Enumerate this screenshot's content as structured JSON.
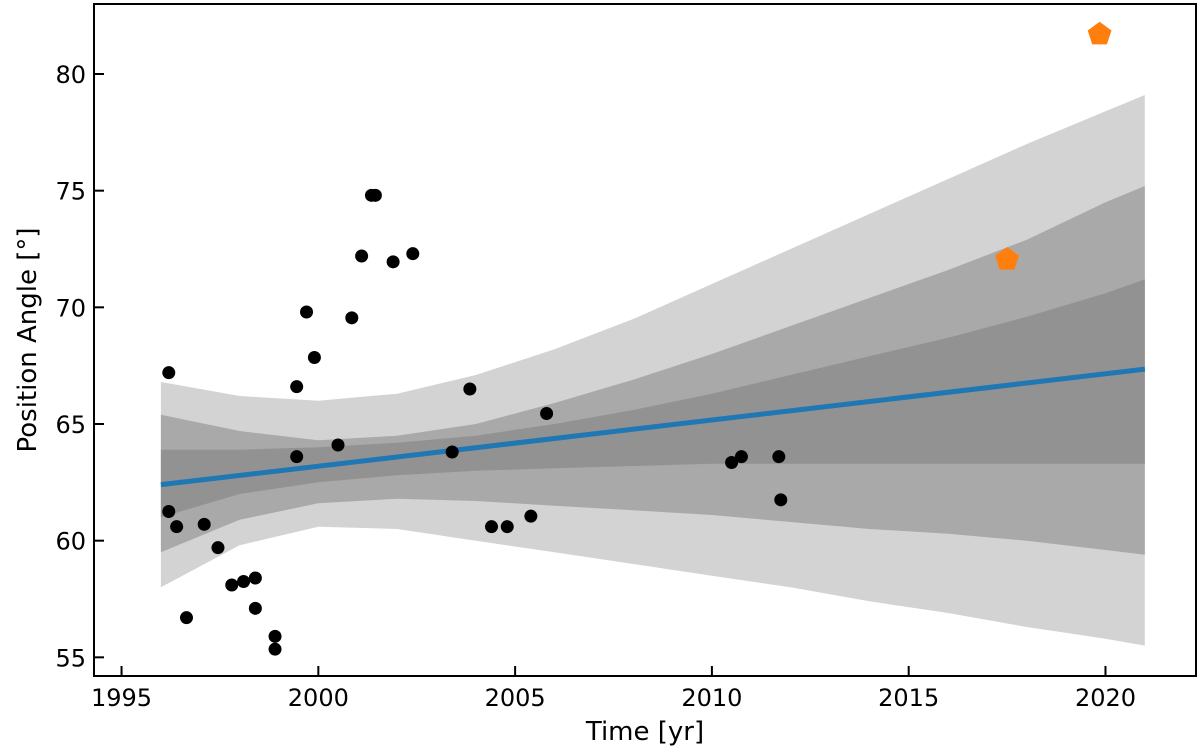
{
  "chart_data": {
    "type": "scatter",
    "xlabel": "Time [yr]",
    "ylabel": "Position Angle [°]",
    "xlim": [
      1994.3,
      2022.3
    ],
    "ylim": [
      54.2,
      83.0
    ],
    "x_ticks": [
      1995,
      2000,
      2005,
      2010,
      2015,
      2020
    ],
    "y_ticks": [
      55,
      60,
      65,
      70,
      75,
      80
    ],
    "grid": false,
    "legend": "none",
    "colors": {
      "points": "#000000",
      "highlight": "#ff7f0e",
      "fit_line": "#1f77b4",
      "band_outer": "#d3d3d3",
      "band_middle": "#a9a9a9",
      "band_inner": "#929292"
    },
    "fit_line": {
      "x": [
        1996.0,
        2021.0
      ],
      "y": [
        62.4,
        67.35
      ]
    },
    "confidence_bands": {
      "x": [
        1996.0,
        1998.0,
        2000.0,
        2002.0,
        2004.0,
        2006.0,
        2008.0,
        2010.0,
        2012.0,
        2014.0,
        2016.0,
        2018.0,
        2020.0,
        2021.0
      ],
      "band_outer": {
        "upper": [
          66.8,
          66.2,
          66.0,
          66.3,
          67.1,
          68.2,
          69.5,
          71.0,
          72.5,
          74.0,
          75.5,
          77.0,
          78.4,
          79.1
        ],
        "lower": [
          58.0,
          59.8,
          60.6,
          60.5,
          60.0,
          59.5,
          59.0,
          58.5,
          58.0,
          57.4,
          56.9,
          56.3,
          55.8,
          55.5
        ]
      },
      "band_middle": {
        "upper": [
          65.4,
          64.7,
          64.3,
          64.5,
          65.0,
          65.9,
          66.9,
          68.0,
          69.2,
          70.4,
          71.6,
          72.9,
          74.5,
          75.2
        ],
        "lower": [
          59.5,
          60.9,
          61.6,
          61.8,
          61.7,
          61.5,
          61.3,
          61.1,
          60.8,
          60.5,
          60.3,
          60.0,
          59.6,
          59.4
        ]
      },
      "band_inner": {
        "upper": [
          63.9,
          63.9,
          64.0,
          64.2,
          64.5,
          65.0,
          65.6,
          66.3,
          67.1,
          67.9,
          68.7,
          69.6,
          70.6,
          71.2
        ],
        "lower": [
          61.0,
          62.0,
          62.5,
          62.8,
          63.0,
          63.1,
          63.2,
          63.3,
          63.3,
          63.3,
          63.3,
          63.3,
          63.3,
          63.3
        ]
      }
    },
    "series": [
      {
        "marker": "circle",
        "x": [
          1996.2,
          1996.2,
          1996.4,
          1996.65,
          1997.1,
          1997.45,
          1997.8,
          1998.1,
          1998.4,
          1998.4,
          1998.9,
          1998.9,
          1999.45,
          1999.45,
          1999.7,
          1999.9,
          2000.5,
          2000.85,
          2001.1,
          2001.35,
          2001.45,
          2001.9,
          2002.4,
          2003.4,
          2003.85,
          2004.4,
          2004.8,
          2005.4,
          2005.8,
          2010.5,
          2010.75,
          2011.7,
          2011.75
        ],
        "y": [
          67.2,
          61.25,
          60.6,
          56.7,
          60.7,
          59.7,
          58.1,
          58.25,
          57.1,
          58.4,
          55.9,
          55.35,
          66.6,
          63.6,
          69.8,
          67.85,
          64.1,
          69.55,
          72.2,
          74.8,
          74.8,
          71.95,
          72.3,
          63.8,
          66.5,
          60.6,
          60.6,
          61.05,
          65.45,
          63.35,
          63.6,
          63.6,
          61.75
        ]
      },
      {
        "marker": "pentagon",
        "x": [
          2017.5,
          2019.85
        ],
        "y": [
          72.05,
          81.7
        ]
      }
    ]
  }
}
